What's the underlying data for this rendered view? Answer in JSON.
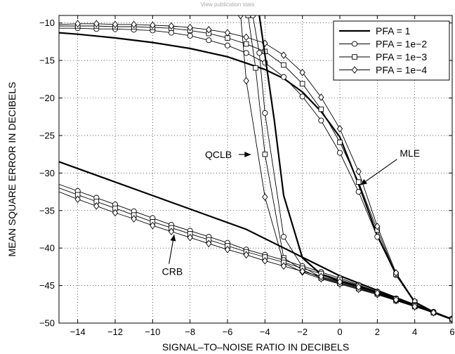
{
  "header_note": "View publication stats",
  "chart_data": {
    "type": "line",
    "title": "",
    "xlabel": "SIGNAL–TO–NOISE RATIO IN DECIBELS",
    "ylabel": "MEAN SQUARE ERROR IN DECIBELS",
    "xlim": [
      -15,
      6
    ],
    "ylim": [
      -50,
      -9
    ],
    "xticks": [
      -14,
      -12,
      -10,
      -8,
      -6,
      -4,
      -2,
      0,
      2,
      4,
      6
    ],
    "yticks": [
      -50,
      -45,
      -40,
      -35,
      -30,
      -25,
      -20,
      -15,
      -10
    ],
    "grid": true,
    "legend_position": "top-right",
    "legend": [
      {
        "label": "PFA = 1",
        "marker": "none"
      },
      {
        "label": "PFA = 1e−2",
        "marker": "circle"
      },
      {
        "label": "PFA = 1e−3",
        "marker": "square"
      },
      {
        "label": "PFA = 1e−4",
        "marker": "diamond"
      }
    ],
    "annotations": [
      {
        "text": "QCLB",
        "x": -7.2,
        "y": -28
      },
      {
        "text": "MLE",
        "x": 3.2,
        "y": -27.8
      },
      {
        "text": "CRB",
        "x": -9.5,
        "y": -43.6
      }
    ],
    "series": [
      {
        "group": "MLE",
        "pfa": "1",
        "marker": "none",
        "x": [
          -15,
          -14,
          -12,
          -10,
          -8,
          -6,
          -4,
          -3,
          -2,
          -1,
          0,
          1,
          2,
          3,
          4,
          5,
          6
        ],
        "y": [
          -11.3,
          -11.5,
          -12.0,
          -12.6,
          -13.4,
          -14.5,
          -16.2,
          -17.4,
          -19.2,
          -21.8,
          -25.2,
          -31.5,
          -38.3,
          -43.5,
          -47.2,
          -48.5,
          -49.5
        ]
      },
      {
        "group": "MLE",
        "pfa": "1e-2",
        "marker": "circle",
        "x": [
          -15,
          -14,
          -13,
          -12,
          -11,
          -10,
          -9,
          -8,
          -7,
          -6,
          -5,
          -4,
          -3,
          -2,
          -1,
          0,
          1,
          2,
          3,
          4,
          5,
          6
        ],
        "y": [
          -10.7,
          -10.7,
          -10.8,
          -10.8,
          -10.9,
          -11.0,
          -11.3,
          -11.7,
          -12.3,
          -13.0,
          -14.0,
          -15.3,
          -17.2,
          -19.8,
          -23.0,
          -27.3,
          -32.5,
          -38.5,
          -43.6,
          -47.3,
          -48.6,
          -49.5
        ]
      },
      {
        "group": "MLE",
        "pfa": "1e-3",
        "marker": "square",
        "x": [
          -15,
          -14,
          -13,
          -12,
          -11,
          -10,
          -9,
          -8,
          -7,
          -6,
          -5,
          -4,
          -3,
          -2,
          -1,
          0,
          1,
          2,
          3,
          4,
          5,
          6
        ],
        "y": [
          -10.4,
          -10.4,
          -10.4,
          -10.5,
          -10.5,
          -10.6,
          -10.7,
          -11.0,
          -11.4,
          -12.0,
          -12.8,
          -13.8,
          -15.6,
          -18.1,
          -21.5,
          -25.9,
          -31.2,
          -37.6,
          -43.5,
          -47.2,
          -48.6,
          -49.5
        ]
      },
      {
        "group": "MLE",
        "pfa": "1e-4",
        "marker": "diamond",
        "x": [
          -15,
          -14,
          -13,
          -12,
          -11,
          -10,
          -9,
          -8,
          -7,
          -6,
          -5,
          -4,
          -3,
          -2,
          -1,
          0,
          1,
          2,
          3,
          4,
          5,
          6
        ],
        "y": [
          -10.2,
          -10.1,
          -10.1,
          -10.2,
          -10.2,
          -10.3,
          -10.4,
          -10.6,
          -10.9,
          -11.3,
          -11.9,
          -12.7,
          -14.3,
          -16.6,
          -19.9,
          -24.1,
          -29.8,
          -37.1,
          -43.3,
          -47.1,
          -48.6,
          -49.5
        ]
      },
      {
        "group": "QCLB",
        "pfa": "1",
        "marker": "none",
        "x": [
          -4.3,
          -3.5,
          -3.0,
          -2.0,
          -1.0,
          0,
          1,
          2,
          3,
          4,
          5,
          6
        ],
        "y": [
          -9,
          -23.0,
          -33.0,
          -41.3,
          -43.5,
          -44.4,
          -45.1,
          -45.9,
          -46.8,
          -47.7,
          -48.6,
          -49.5
        ]
      },
      {
        "group": "QCLB",
        "pfa": "1e-2",
        "marker": "circle",
        "x": [
          -4.65,
          -4.3,
          -4,
          -3,
          -2,
          -1,
          0,
          1,
          2,
          3,
          4,
          5,
          6
        ],
        "y": [
          -9,
          -14.0,
          -22.0,
          -38.5,
          -42.5,
          -43.9,
          -44.6,
          -45.3,
          -46.1,
          -47.0,
          -47.8,
          -48.6,
          -49.5
        ]
      },
      {
        "group": "QCLB",
        "pfa": "1e-3",
        "marker": "square",
        "x": [
          -4.9,
          -4.5,
          -4,
          -3,
          -2,
          -1,
          0,
          1,
          2,
          3,
          4,
          5,
          6
        ],
        "y": [
          -9,
          -16.0,
          -27.5,
          -41.3,
          -42.9,
          -44.0,
          -44.7,
          -45.4,
          -46.1,
          -47.0,
          -47.8,
          -48.6,
          -49.5
        ]
      },
      {
        "group": "QCLB",
        "pfa": "1e-4",
        "marker": "diamond",
        "x": [
          -5.3,
          -5,
          -4,
          -3,
          -2,
          -1,
          0,
          1,
          2,
          3,
          4,
          5,
          6
        ],
        "y": [
          -9,
          -17.7,
          -33.2,
          -42.0,
          -43.2,
          -44.1,
          -44.8,
          -45.5,
          -46.2,
          -47.0,
          -47.8,
          -48.6,
          -49.5
        ]
      },
      {
        "group": "CRB",
        "pfa": "1",
        "marker": "none",
        "x": [
          -15,
          -10,
          -5,
          0,
          6
        ],
        "y": [
          -28.5,
          -33.0,
          -37.5,
          -43.7,
          -49.5
        ]
      },
      {
        "group": "CRB",
        "pfa": "1e-2",
        "marker": "circle",
        "x": [
          -15,
          -14,
          -13,
          -12,
          -11,
          -10,
          -9,
          -8,
          -7,
          -6,
          -5,
          -4,
          -3,
          -2,
          -1,
          0,
          1,
          2,
          3,
          4,
          5,
          6
        ],
        "y": [
          -31.5,
          -32.4,
          -33.3,
          -34.2,
          -35.1,
          -36.0,
          -36.9,
          -37.7,
          -38.5,
          -39.3,
          -40.2,
          -40.9,
          -41.6,
          -42.4,
          -43.2,
          -44.0,
          -44.9,
          -45.8,
          -46.7,
          -47.6,
          -48.5,
          -49.4
        ]
      },
      {
        "group": "CRB",
        "pfa": "1e-3",
        "marker": "square",
        "x": [
          -15,
          -14,
          -13,
          -12,
          -11,
          -10,
          -9,
          -8,
          -7,
          -6,
          -5,
          -4,
          -3,
          -2,
          -1,
          0,
          1,
          2,
          3,
          4,
          5,
          6
        ],
        "y": [
          -32.0,
          -32.9,
          -33.8,
          -34.7,
          -35.6,
          -36.5,
          -37.3,
          -38.1,
          -38.9,
          -39.7,
          -40.5,
          -41.2,
          -41.9,
          -42.7,
          -43.4,
          -44.2,
          -45.0,
          -45.9,
          -46.8,
          -47.7,
          -48.6,
          -49.5
        ]
      },
      {
        "group": "CRB",
        "pfa": "1e-4",
        "marker": "diamond",
        "x": [
          -15,
          -14,
          -13,
          -12,
          -11,
          -10,
          -9,
          -8,
          -7,
          -6,
          -5,
          -4,
          -3,
          -2,
          -1,
          0,
          1,
          2,
          3,
          4,
          5,
          6
        ],
        "y": [
          -32.5,
          -33.5,
          -34.4,
          -35.3,
          -36.1,
          -37.0,
          -37.8,
          -38.6,
          -39.4,
          -40.2,
          -40.9,
          -41.7,
          -42.4,
          -43.1,
          -43.8,
          -44.5,
          -45.2,
          -46.0,
          -46.9,
          -47.8,
          -48.6,
          -49.5
        ]
      }
    ]
  }
}
